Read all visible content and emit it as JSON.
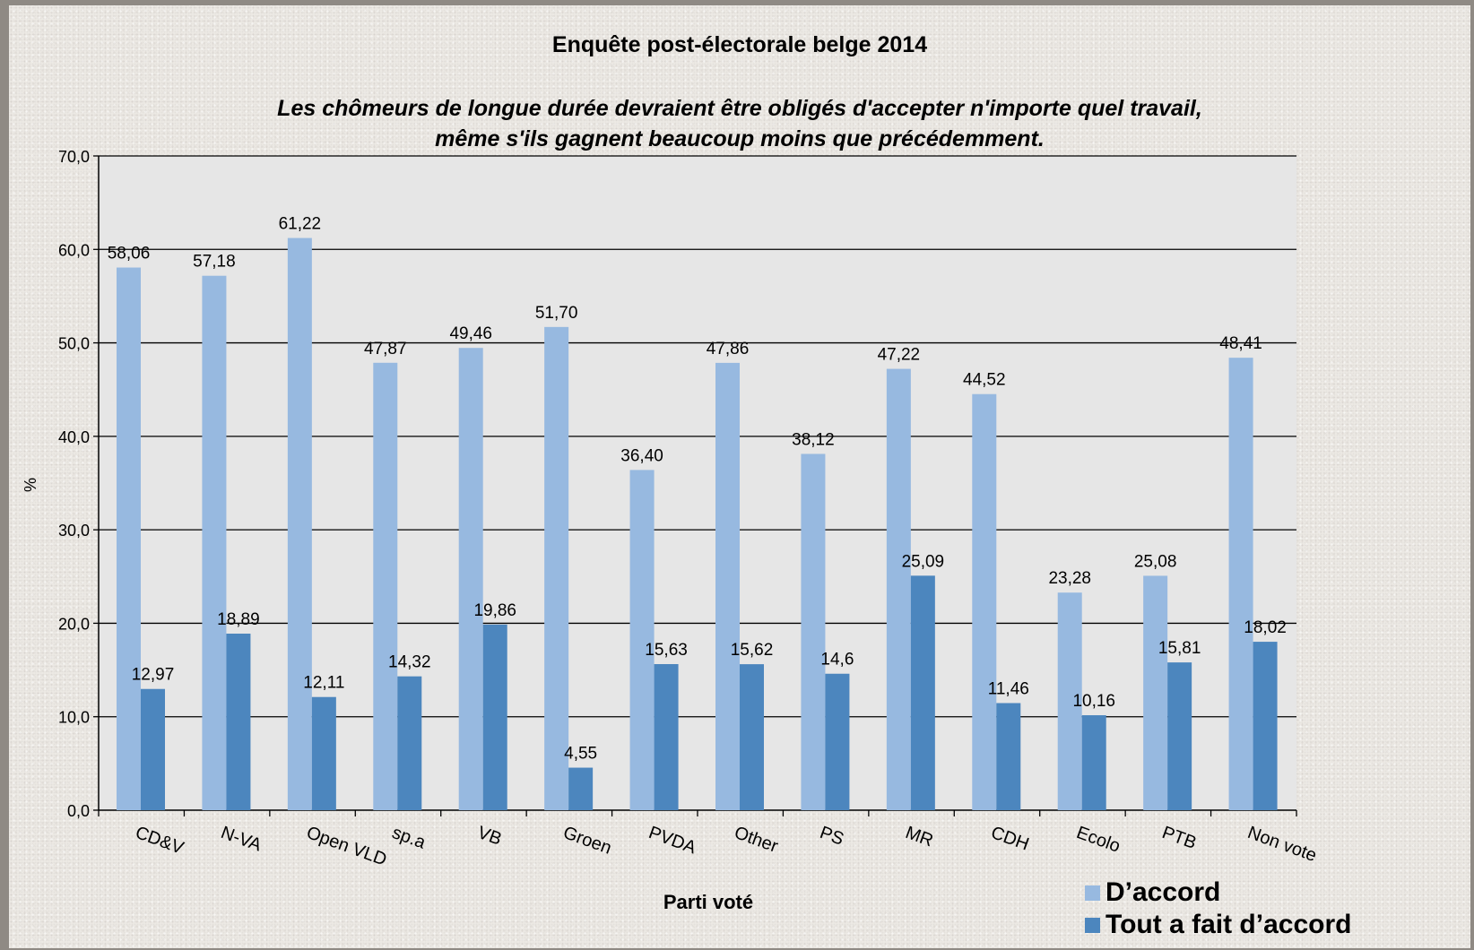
{
  "colors": {
    "series_light": "#97b9e0",
    "series_dark": "#4c86be",
    "plot_bg": "#e6e6e6",
    "grid": "#000000"
  },
  "chart_data": {
    "type": "bar",
    "title": "Enquête post-électorale belge 2014",
    "subtitle": "Les chômeurs de longue durée devraient être obligés d'accepter n'importe quel travail,\nmême s'ils gagnent beaucoup moins que précédemment.",
    "xlabel": "Parti voté",
    "ylabel": "%",
    "ylim": [
      0,
      70
    ],
    "yticks": [
      "0,0",
      "10,0",
      "20,0",
      "30,0",
      "40,0",
      "50,0",
      "60,0",
      "70,0"
    ],
    "grid": true,
    "legend_position": "bottom-right",
    "categories": [
      "CD&V",
      "N-VA",
      "Open VLD",
      "sp.a",
      "VB",
      "Groen",
      "PVDA",
      "Other",
      "PS",
      "MR",
      "CDH",
      "Ecolo",
      "PTB",
      "Non vote"
    ],
    "series": [
      {
        "name": "D’accord",
        "values": [
          58.06,
          57.18,
          61.22,
          47.87,
          49.46,
          51.7,
          36.4,
          47.86,
          38.12,
          47.22,
          44.52,
          23.28,
          25.08,
          48.41
        ],
        "labels": [
          "58,06",
          "57,18",
          "61,22",
          "47,87",
          "49,46",
          "51,70",
          "36,40",
          "47,86",
          "38,12",
          "47,22",
          "44,52",
          "23,28",
          "25,08",
          "48,41"
        ]
      },
      {
        "name": "Tout a fait d’accord",
        "values": [
          12.97,
          18.89,
          12.11,
          14.32,
          19.86,
          4.55,
          15.63,
          15.62,
          14.6,
          25.09,
          11.46,
          10.16,
          15.81,
          18.02
        ],
        "labels": [
          "12,97",
          "18,89",
          "12,11",
          "14,32",
          "19,86",
          "4,55",
          "15,63",
          "15,62",
          "14,6",
          "25,09",
          "11,46",
          "10,16",
          "15,81",
          "18,02"
        ]
      }
    ]
  }
}
